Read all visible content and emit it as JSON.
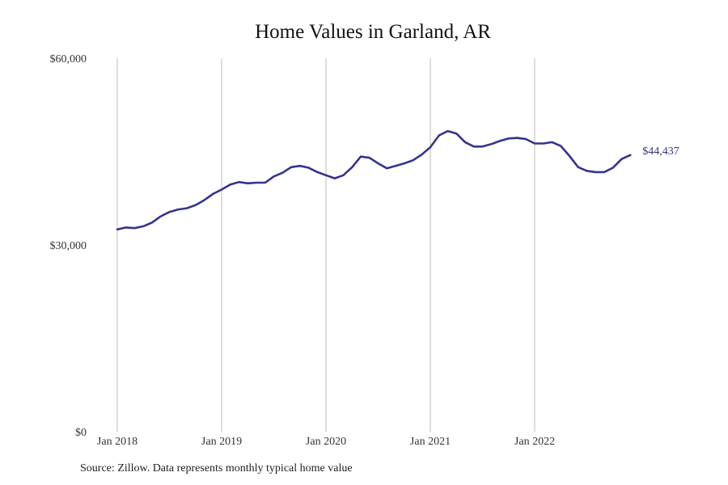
{
  "chart_data": {
    "type": "line",
    "title": "Home Values in Garland, AR",
    "xlabel": "",
    "ylabel": "",
    "x_ticks": [
      "Jan 2018",
      "Jan 2019",
      "Jan 2020",
      "Jan 2021",
      "Jan 2022"
    ],
    "y_ticks": [
      "$0",
      "$30,000",
      "$60,000"
    ],
    "y_tick_values": [
      0,
      30000,
      60000
    ],
    "ylim": [
      0,
      60000
    ],
    "xlim": [
      "2018-01",
      "2022-12"
    ],
    "grid": "vertical",
    "series": [
      {
        "x": [
          "2018-01",
          "2018-02",
          "2018-03",
          "2018-04",
          "2018-05",
          "2018-06",
          "2018-07",
          "2018-08",
          "2018-09",
          "2018-10",
          "2018-11",
          "2018-12",
          "2019-01",
          "2019-02",
          "2019-03",
          "2019-04",
          "2019-05",
          "2019-06",
          "2019-07",
          "2019-08",
          "2019-09",
          "2019-10",
          "2019-11",
          "2019-12",
          "2020-01",
          "2020-02",
          "2020-03",
          "2020-04",
          "2020-05",
          "2020-06",
          "2020-07",
          "2020-08",
          "2020-09",
          "2020-10",
          "2020-11",
          "2020-12",
          "2021-01",
          "2021-02",
          "2021-03",
          "2021-04",
          "2021-05",
          "2021-06",
          "2021-07",
          "2021-08",
          "2021-09",
          "2021-10",
          "2021-11",
          "2021-12",
          "2022-01",
          "2022-02",
          "2022-03",
          "2022-04",
          "2022-05",
          "2022-06",
          "2022-07",
          "2022-08",
          "2022-09",
          "2022-10",
          "2022-11",
          "2022-12"
        ],
        "values": [
          32500,
          32800,
          32700,
          33000,
          33600,
          34600,
          35300,
          35700,
          35900,
          36400,
          37200,
          38200,
          38900,
          39700,
          40100,
          39900,
          40000,
          40000,
          41000,
          41600,
          42500,
          42700,
          42400,
          41700,
          41200,
          40700,
          41200,
          42500,
          44200,
          44000,
          43100,
          42300,
          42700,
          43100,
          43600,
          44500,
          45700,
          47600,
          48300,
          47900,
          46500,
          45800,
          45800,
          46200,
          46700,
          47100,
          47200,
          47000,
          46300,
          46300,
          46500,
          45900,
          44300,
          42500,
          41900,
          41700,
          41700,
          42400,
          43800,
          44437
        ],
        "end_label": "$44,437"
      }
    ],
    "colors": {
      "line": "#35338f",
      "grid": "#bdbdbd"
    }
  },
  "source_note": "Source: Zillow. Data represents monthly typical home value"
}
